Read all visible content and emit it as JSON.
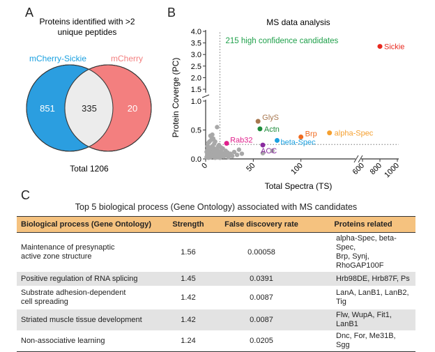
{
  "panelA": {
    "letter": "A",
    "title_line1": "Proteins identified with >2",
    "title_line2": "unique peptides",
    "left_label": "mCherry-Sickie",
    "right_label": "mCherry",
    "left_only": "851",
    "overlap": "335",
    "right_only": "20",
    "total": "Total 1206",
    "colors": {
      "left": "#2b9ee0",
      "right": "#f37f7f",
      "overlap": "#ececec",
      "left_label": "#1aa0e0",
      "right_label": "#f37f7f"
    }
  },
  "panelB": {
    "letter": "B"
  },
  "panelC": {
    "letter": "C",
    "title": "Top 5 biological process (Gene Ontology) associated with MS candidates",
    "headers": [
      "Biological process (Gene Ontology)",
      "Strength",
      "False discovery rate",
      "Proteins related"
    ],
    "rows": [
      {
        "process": "Maintenance of presynaptic\nactive zone structure",
        "strength": "1.56",
        "fdr": "0.00058",
        "proteins": "alpha-Spec, beta-Spec,\nBrp, Synj, RhoGAP100F"
      },
      {
        "process": "Positive regulation of RNA splicing",
        "strength": "1.45",
        "fdr": "0.0391",
        "proteins": "Hrb98DE, Hrb87F, Ps"
      },
      {
        "process": "Substrate adhesion-dependent\ncell spreading",
        "strength": "1.42",
        "fdr": "0.0087",
        "proteins": "LanA, LanB1, LanB2, Tig"
      },
      {
        "process": "Striated muscle tissue development",
        "strength": "1.42",
        "fdr": "0.0087",
        "proteins": "Flw, WupA, Fit1, LanB1"
      },
      {
        "process": "Non-associative learning",
        "strength": "1.24",
        "fdr": "0.0205",
        "proteins": "Dnc, For, Me31B, Sgg"
      }
    ]
  },
  "chart_data": {
    "type": "scatter",
    "title": "MS data analysis",
    "xlabel": "Total Spectra (TS)",
    "ylabel": "Protein Coverge (PC)",
    "annotation": "215 high confidence candidates",
    "x_tick_labels": [
      "0",
      "50",
      "100",
      "600",
      "800",
      "1000"
    ],
    "y_tick_labels": [
      "0.0",
      "0.5",
      "1.0",
      "1.5",
      "2.0",
      "2.5",
      "3.0",
      "3.5",
      "4.0"
    ],
    "threshold": {
      "x": 15,
      "y": 0.25
    },
    "labeled_points": [
      {
        "name": "Sickie",
        "x": 800,
        "y": 3.35,
        "color": "#e8281e"
      },
      {
        "name": "GlyS",
        "x": 55,
        "y": 0.65,
        "color": "#a87850"
      },
      {
        "name": "Actn",
        "x": 57,
        "y": 0.52,
        "color": "#1e8c3c"
      },
      {
        "name": "Brp",
        "x": 100,
        "y": 0.38,
        "color": "#f06a1e"
      },
      {
        "name": "alpha-Spec",
        "x": 130,
        "y": 0.45,
        "color": "#f5a030"
      },
      {
        "name": "Rab32",
        "x": 22,
        "y": 0.27,
        "color": "#e0208c"
      },
      {
        "name": "ACC",
        "x": 60,
        "y": 0.24,
        "color": "#8a2aa0"
      },
      {
        "name": "beta-Spec",
        "x": 75,
        "y": 0.32,
        "color": "#1aa0e0"
      }
    ],
    "grey_points": [
      [
        1,
        0.03
      ],
      [
        2,
        0.08
      ],
      [
        2,
        0.15
      ],
      [
        3,
        0.02
      ],
      [
        3,
        0.12
      ],
      [
        4,
        0.06
      ],
      [
        4,
        0.2
      ],
      [
        5,
        0.1
      ],
      [
        5,
        0.03
      ],
      [
        6,
        0.15
      ],
      [
        6,
        0.05
      ],
      [
        7,
        0.09
      ],
      [
        7,
        0.22
      ],
      [
        8,
        0.04
      ],
      [
        8,
        0.13
      ],
      [
        9,
        0.07
      ],
      [
        9,
        0.18
      ],
      [
        10,
        0.02
      ],
      [
        10,
        0.11
      ],
      [
        11,
        0.06
      ],
      [
        11,
        0.16
      ],
      [
        12,
        0.09
      ],
      [
        12,
        0.03
      ],
      [
        13,
        0.14
      ],
      [
        13,
        0.21
      ],
      [
        14,
        0.05
      ],
      [
        14,
        0.1
      ],
      [
        15,
        0.08
      ],
      [
        15,
        0.02
      ],
      [
        16,
        0.13
      ],
      [
        17,
        0.06
      ],
      [
        18,
        0.1
      ],
      [
        19,
        0.04
      ],
      [
        20,
        0.08
      ],
      [
        21,
        0.14
      ],
      [
        22,
        0.06
      ],
      [
        23,
        0.11
      ],
      [
        24,
        0.03
      ],
      [
        26,
        0.09
      ],
      [
        28,
        0.05
      ],
      [
        30,
        0.12
      ],
      [
        33,
        0.07
      ],
      [
        35,
        0.16
      ],
      [
        38,
        0.09
      ],
      [
        12,
        0.55
      ],
      [
        8,
        0.35
      ],
      [
        10,
        0.3
      ],
      [
        5,
        0.4
      ],
      [
        60,
        0.1
      ],
      [
        70,
        0.14
      ],
      [
        3,
        0.28
      ],
      [
        6,
        0.33
      ],
      [
        9,
        0.26
      ],
      [
        14,
        0.24
      ],
      [
        16,
        0.2
      ],
      [
        18,
        0.18
      ],
      [
        2,
        0.22
      ],
      [
        4,
        0.3
      ],
      [
        7,
        0.42
      ],
      [
        1,
        0.12
      ]
    ]
  }
}
